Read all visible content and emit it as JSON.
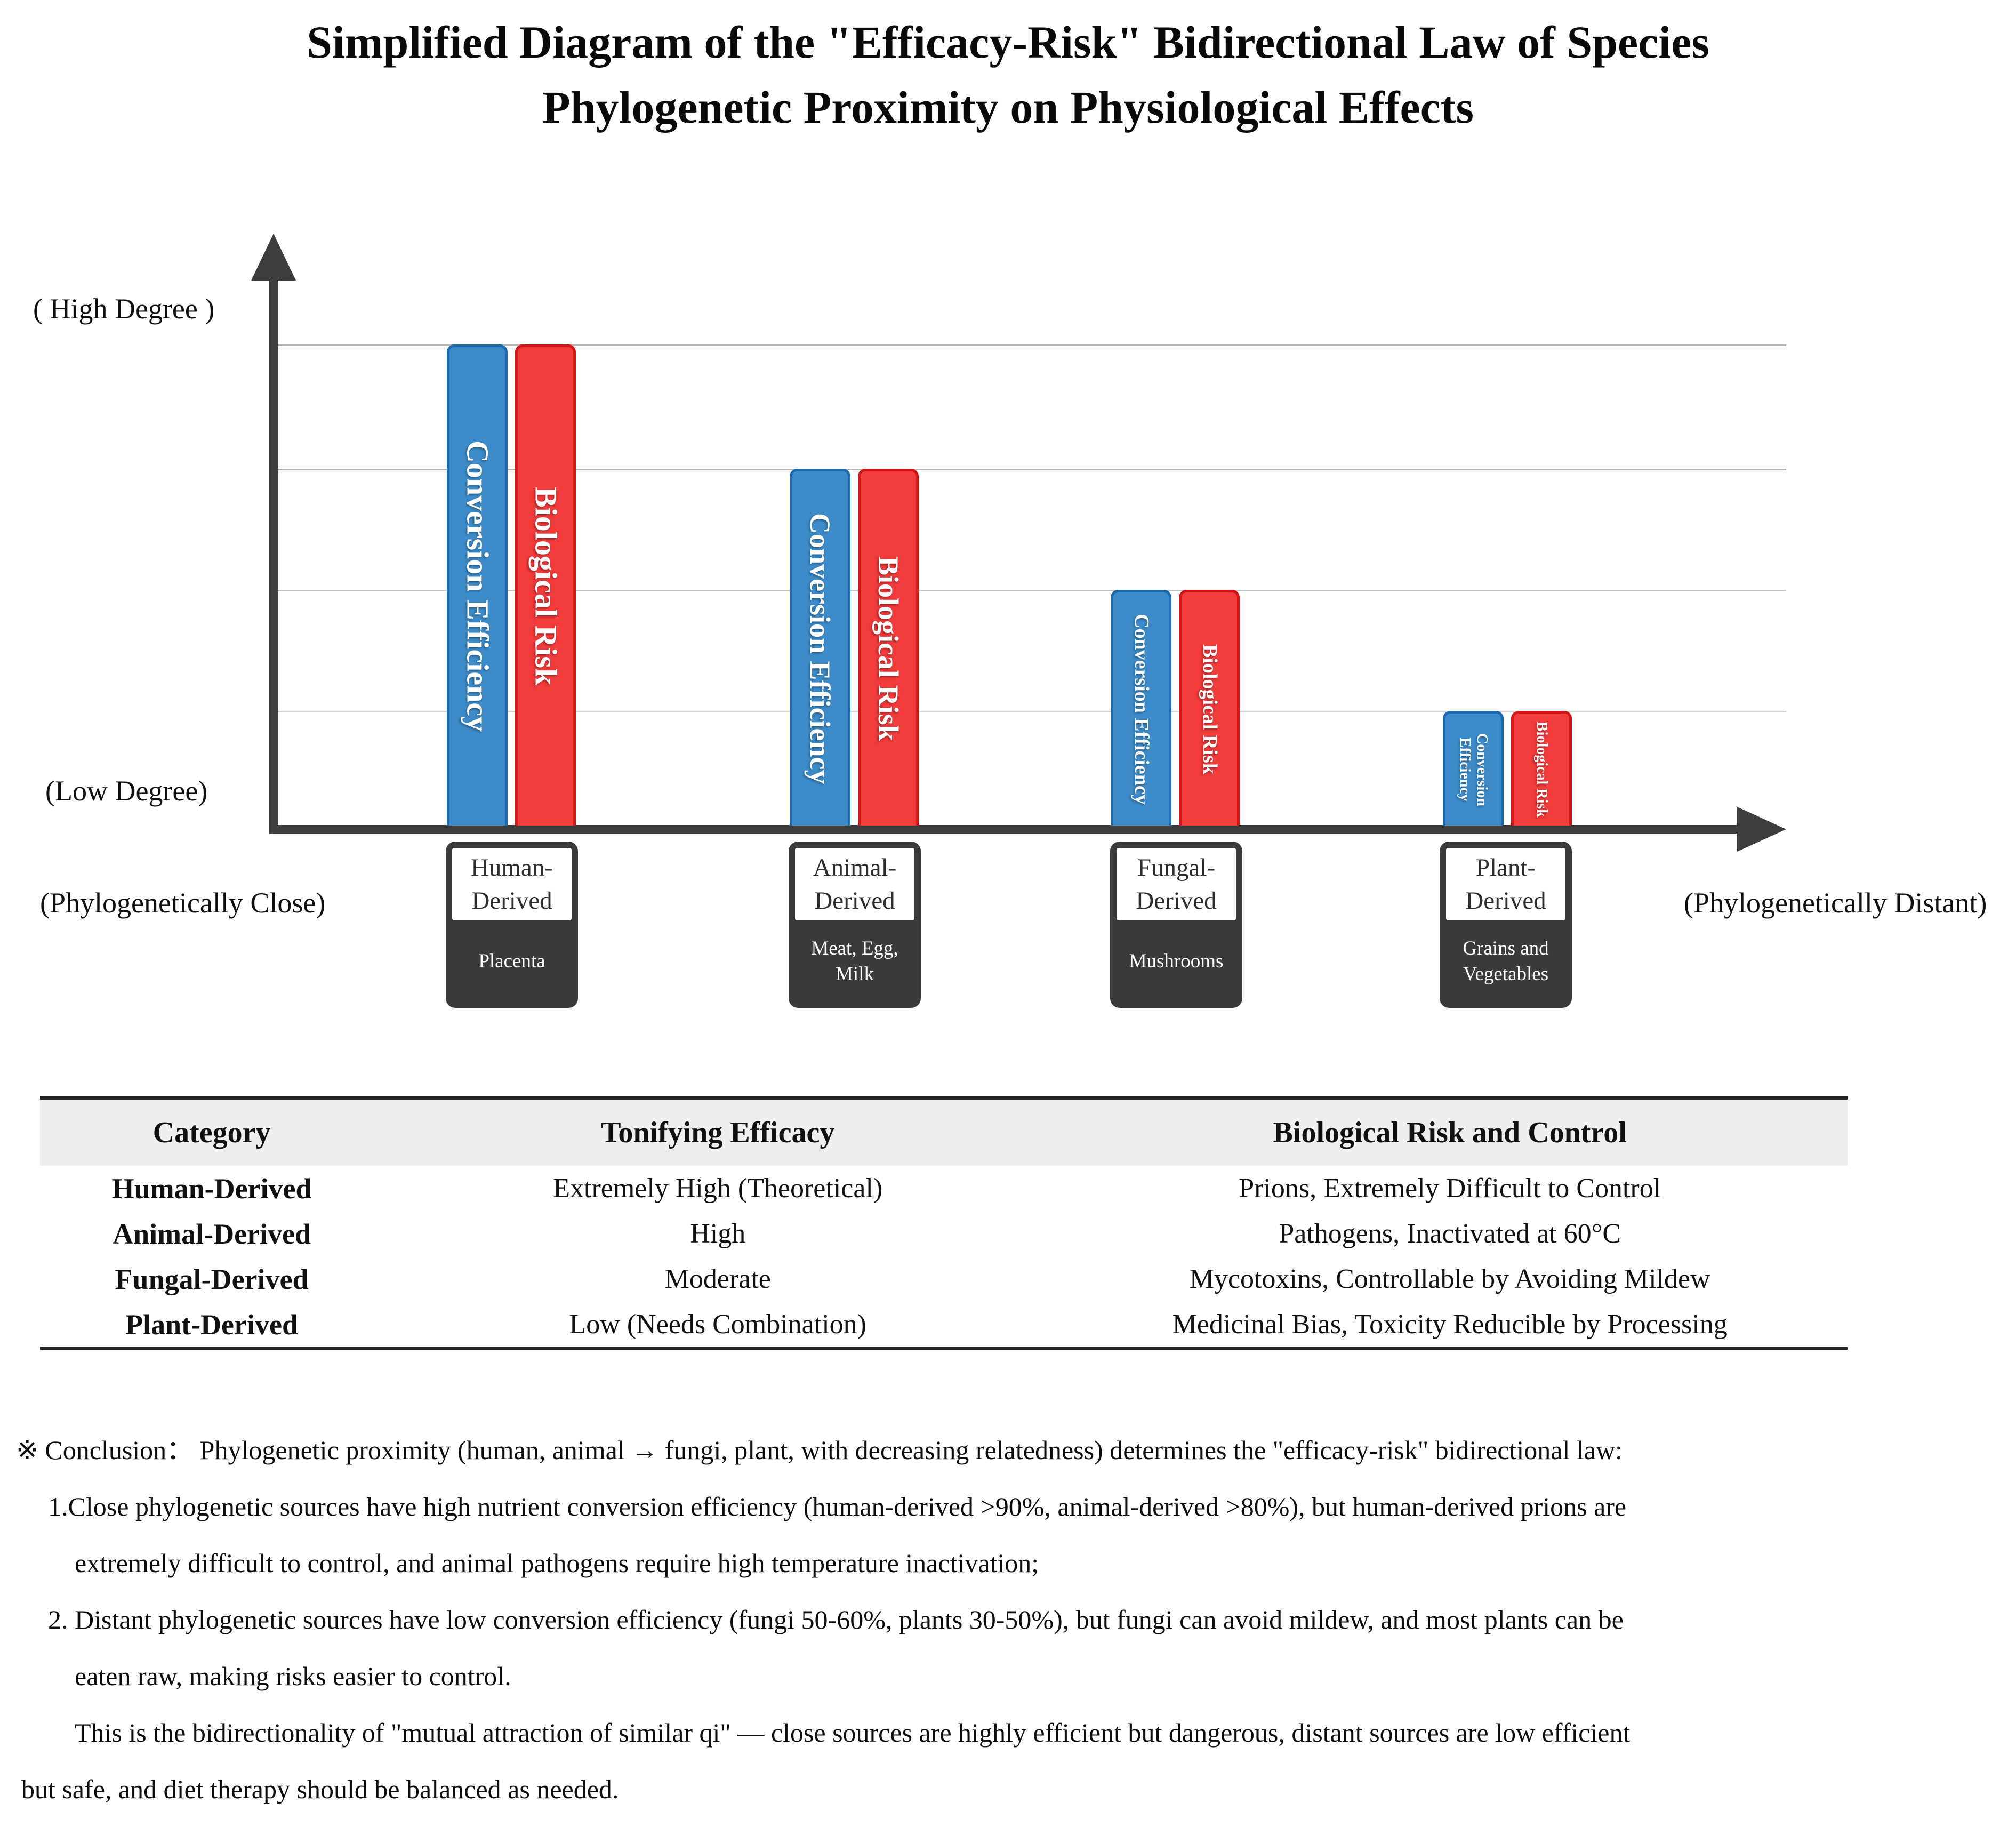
{
  "title": {
    "line1": "Simplified Diagram of the \"Efficacy-Risk\" Bidirectional Law of Species",
    "line2": "Phylogenetic Proximity on Physiological Effects"
  },
  "chart": {
    "y_axis_top_label": "( High Degree )",
    "y_axis_bottom_label": "(Low Degree)",
    "x_axis_left_label": "(Phylogenetically Close)",
    "x_axis_right_label": "(Phylogenetically Distant)",
    "series_blue": "Conversion Efficiency",
    "series_red": "Biological Risk",
    "groups": [
      {
        "category": "Human-Derived",
        "example": "Placenta"
      },
      {
        "category": "Animal-Derived",
        "example": "Meat, Egg, Milk"
      },
      {
        "category": "Fungal-Derived",
        "example": "Mushrooms"
      },
      {
        "category": "Plant-Derived",
        "example": "Grains and Vegetables"
      }
    ],
    "colors": {
      "blue_fill": "#3d8cc9",
      "blue_border": "#1d6aae",
      "red_fill": "#f23b3b",
      "red_border": "#d01616",
      "axis": "#3d3d3d",
      "gridline": "#b3b3b3",
      "category_box": "#3b3b3b",
      "table_header_bg": "#efefef"
    }
  },
  "chart_data": {
    "type": "bar",
    "categories": [
      "Human-Derived",
      "Animal-Derived",
      "Fungal-Derived",
      "Plant-Derived"
    ],
    "category_examples": [
      "Placenta",
      "Meat, Egg, Milk",
      "Mushrooms",
      "Grains and Vegetables"
    ],
    "series": [
      {
        "name": "Conversion Efficiency",
        "values": [
          4,
          3,
          2,
          1
        ],
        "color": "#3d8cc9"
      },
      {
        "name": "Biological Risk",
        "values": [
          4,
          3,
          2,
          1
        ],
        "color": "#f23b3b"
      }
    ],
    "title": "Simplified Diagram of the \"Efficacy-Risk\" Bidirectional Law of Species Phylogenetic Proximity on Physiological Effects",
    "xlabel": "(Phylogenetically Close) → (Phylogenetically Distant)",
    "ylabel": "(Low Degree) → ( High Degree )",
    "ylim": [
      0,
      4.5
    ],
    "y_units": "qualitative relative level (gridlines at 1, 2, 3, 4)",
    "grid": true,
    "legend_position": "labels inside bars"
  },
  "table": {
    "headers": [
      "Category",
      "Tonifying Efficacy",
      "Biological Risk and Control"
    ],
    "rows": [
      [
        "Human-Derived",
        "Extremely High (Theoretical)",
        "Prions, Extremely Difficult to Control"
      ],
      [
        "Animal-Derived",
        "High",
        "Pathogens, Inactivated at 60°C"
      ],
      [
        "Fungal-Derived",
        "Moderate",
        "Mycotoxins, Controllable by Avoiding Mildew"
      ],
      [
        "Plant-Derived",
        "Low (Needs Combination)",
        "Medicinal Bias, Toxicity Reducible by Processing"
      ]
    ]
  },
  "conclusion": {
    "lines": [
      "※ Conclusion：  Phylogenetic proximity (human, animal → fungi, plant, with decreasing relatedness) determines the \"efficacy-risk\" bidirectional law:",
      "1.Close phylogenetic sources have high nutrient conversion efficiency (human-derived >90%, animal-derived >80%), but human-derived prions are",
      "extremely difficult to control, and animal pathogens require high temperature inactivation;",
      "2. Distant phylogenetic sources have low conversion efficiency (fungi 50-60%, plants 30-50%), but fungi can avoid mildew, and most plants can be",
      "eaten raw, making risks easier to control.",
      "This is the bidirectionality of \"mutual attraction of similar qi\" — close sources are highly efficient but dangerous, distant sources are low efficient",
      "but safe, and diet therapy should be balanced as needed."
    ]
  }
}
